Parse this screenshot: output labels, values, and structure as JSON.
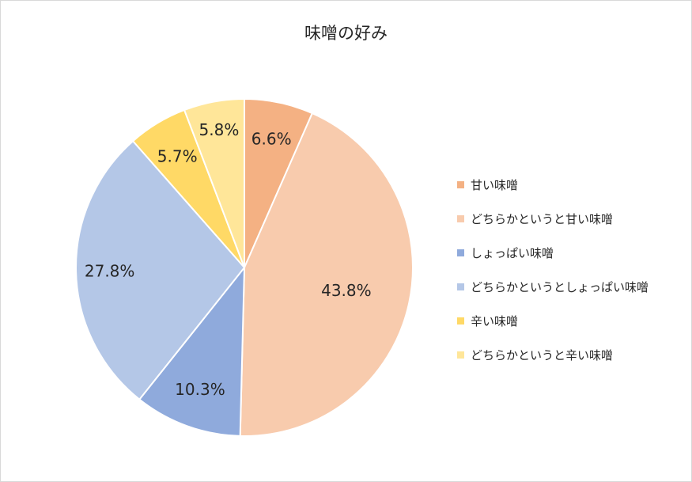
{
  "chart_data": {
    "type": "pie",
    "title": "味噌の好み",
    "slices": [
      {
        "name": "甘い味噌",
        "value": 6.6,
        "label": "6.6%",
        "color": "#F4B183"
      },
      {
        "name": "どちらかというと甘い味噌",
        "value": 43.8,
        "label": "43.8%",
        "color": "#F8CBAD"
      },
      {
        "name": "しょっぱい味噌",
        "value": 10.3,
        "label": "10.3%",
        "color": "#8FAADC"
      },
      {
        "name": "どちらかというとしょっぱい味噌",
        "value": 27.8,
        "label": "27.8%",
        "color": "#B4C7E7"
      },
      {
        "name": "辛い味噌",
        "value": 5.7,
        "label": "5.7%",
        "color": "#FFD966"
      },
      {
        "name": "どちらかというと辛い味噌",
        "value": 5.8,
        "label": "5.8%",
        "color": "#FFE699"
      }
    ],
    "legend_position": "right"
  }
}
